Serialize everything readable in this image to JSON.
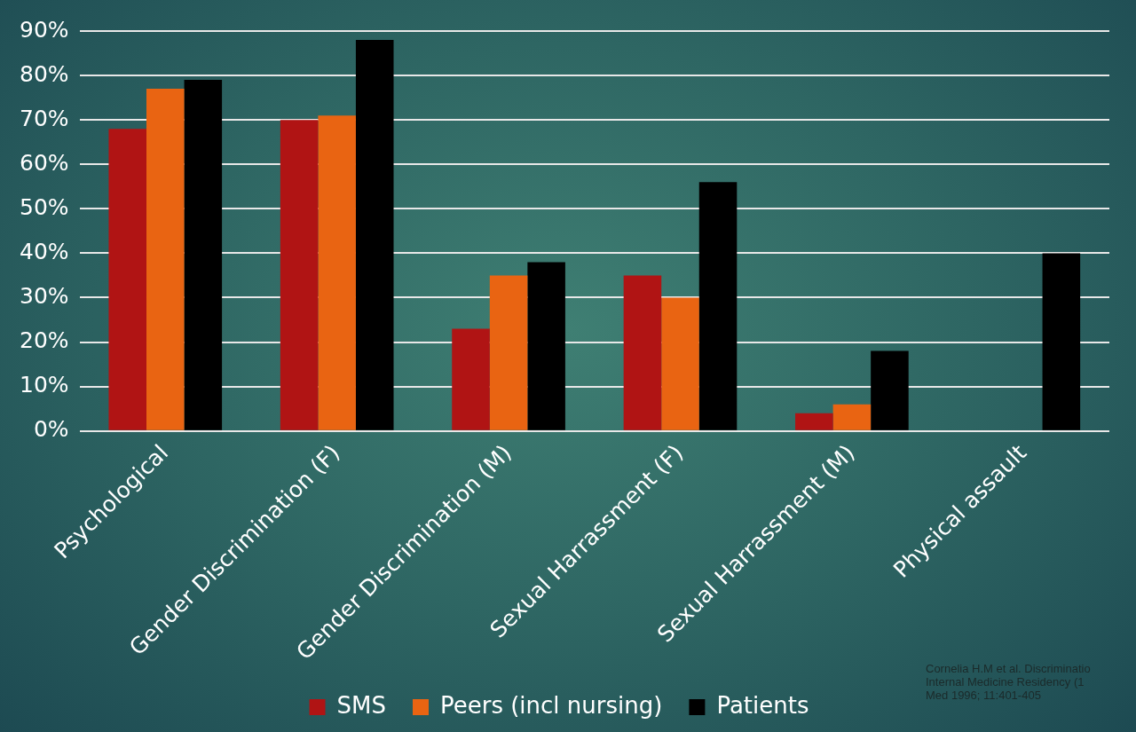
{
  "chart_data": {
    "type": "bar",
    "categories": [
      "Psychological",
      "Gender Discrimination (F)",
      "Gender Discrimination (M)",
      "Sexual Harrassment (F)",
      "Sexual Harrassment (M)",
      "Physical assault"
    ],
    "series": [
      {
        "name": "SMS",
        "color": "#b01414",
        "values": [
          68,
          70,
          23,
          35,
          4,
          0
        ]
      },
      {
        "name": "Peers (incl nursing)",
        "color": "#e96412",
        "values": [
          77,
          71,
          35,
          30,
          6,
          0
        ]
      },
      {
        "name": "Patients",
        "color": "#000000",
        "values": [
          79,
          88,
          38,
          56,
          18,
          40
        ]
      }
    ],
    "ylim": [
      0,
      90
    ],
    "yticks": [
      {
        "value": 0,
        "label": "0%"
      },
      {
        "value": 10,
        "label": "10%"
      },
      {
        "value": 20,
        "label": "20%"
      },
      {
        "value": 30,
        "label": "30%"
      },
      {
        "value": 40,
        "label": "40%"
      },
      {
        "value": 50,
        "label": "50%"
      },
      {
        "value": 60,
        "label": "60%"
      },
      {
        "value": 70,
        "label": "70%"
      },
      {
        "value": 80,
        "label": "80%"
      },
      {
        "value": 90,
        "label": "90%"
      }
    ],
    "grid": "y",
    "legend": "bottom",
    "annotations": [
      "Cornelia H.M et al. Discriminatio\nInternal Medicine Residency (1\nMed 1996; 11:401-405"
    ]
  }
}
